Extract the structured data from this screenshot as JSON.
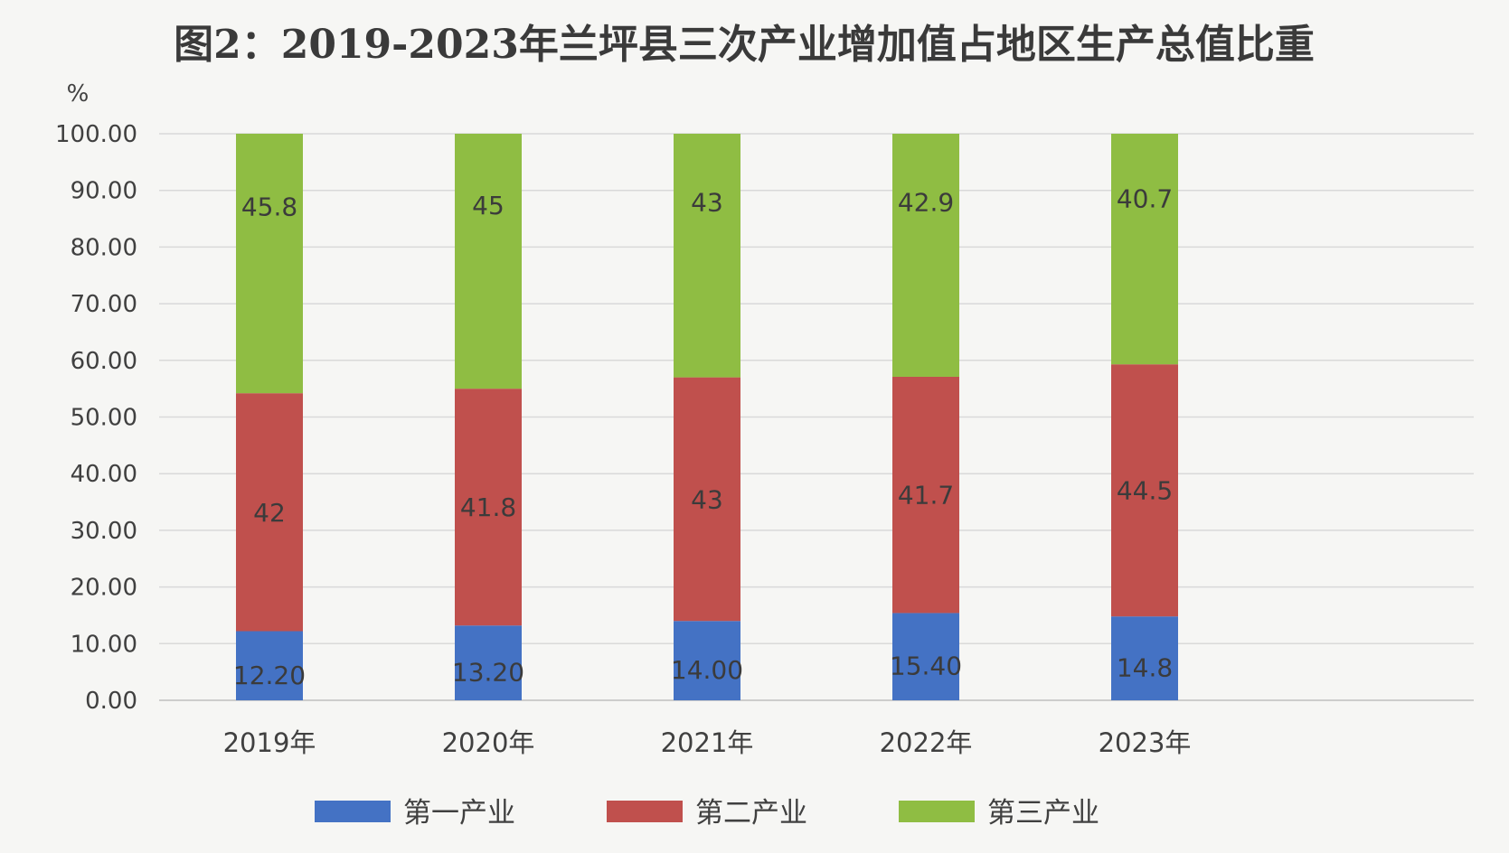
{
  "chart_data": {
    "type": "bar",
    "stacked": true,
    "title": "图2：2019-2023年兰坪县三次产业增加值占地区生产总值比重",
    "ylabel": "%",
    "xlabel": "",
    "ylim": [
      0,
      100
    ],
    "yticks": [
      "0.00",
      "10.00",
      "20.00",
      "30.00",
      "40.00",
      "50.00",
      "60.00",
      "70.00",
      "80.00",
      "90.00",
      "100.00"
    ],
    "categories": [
      "2019年",
      "2020年",
      "2021年",
      "2022年",
      "2023年"
    ],
    "grid": true,
    "legend_position": "bottom",
    "series": [
      {
        "name": "第一产业",
        "color": "#4472c4",
        "values": [
          12.2,
          13.2,
          14.0,
          15.4,
          14.8
        ],
        "labels": [
          "12.20",
          "13.20",
          "14.00",
          "15.40",
          "14.8"
        ]
      },
      {
        "name": "第二产业",
        "color": "#c0504d",
        "values": [
          42,
          41.8,
          43,
          41.7,
          44.5
        ],
        "labels": [
          "42",
          "41.8",
          "43",
          "41.7",
          "44.5"
        ]
      },
      {
        "name": "第三产业",
        "color": "#8fbd43",
        "values": [
          45.8,
          45,
          43,
          42.9,
          40.7
        ],
        "labels": [
          "45.8",
          "45",
          "43",
          "42.9",
          "40.7"
        ]
      }
    ]
  }
}
